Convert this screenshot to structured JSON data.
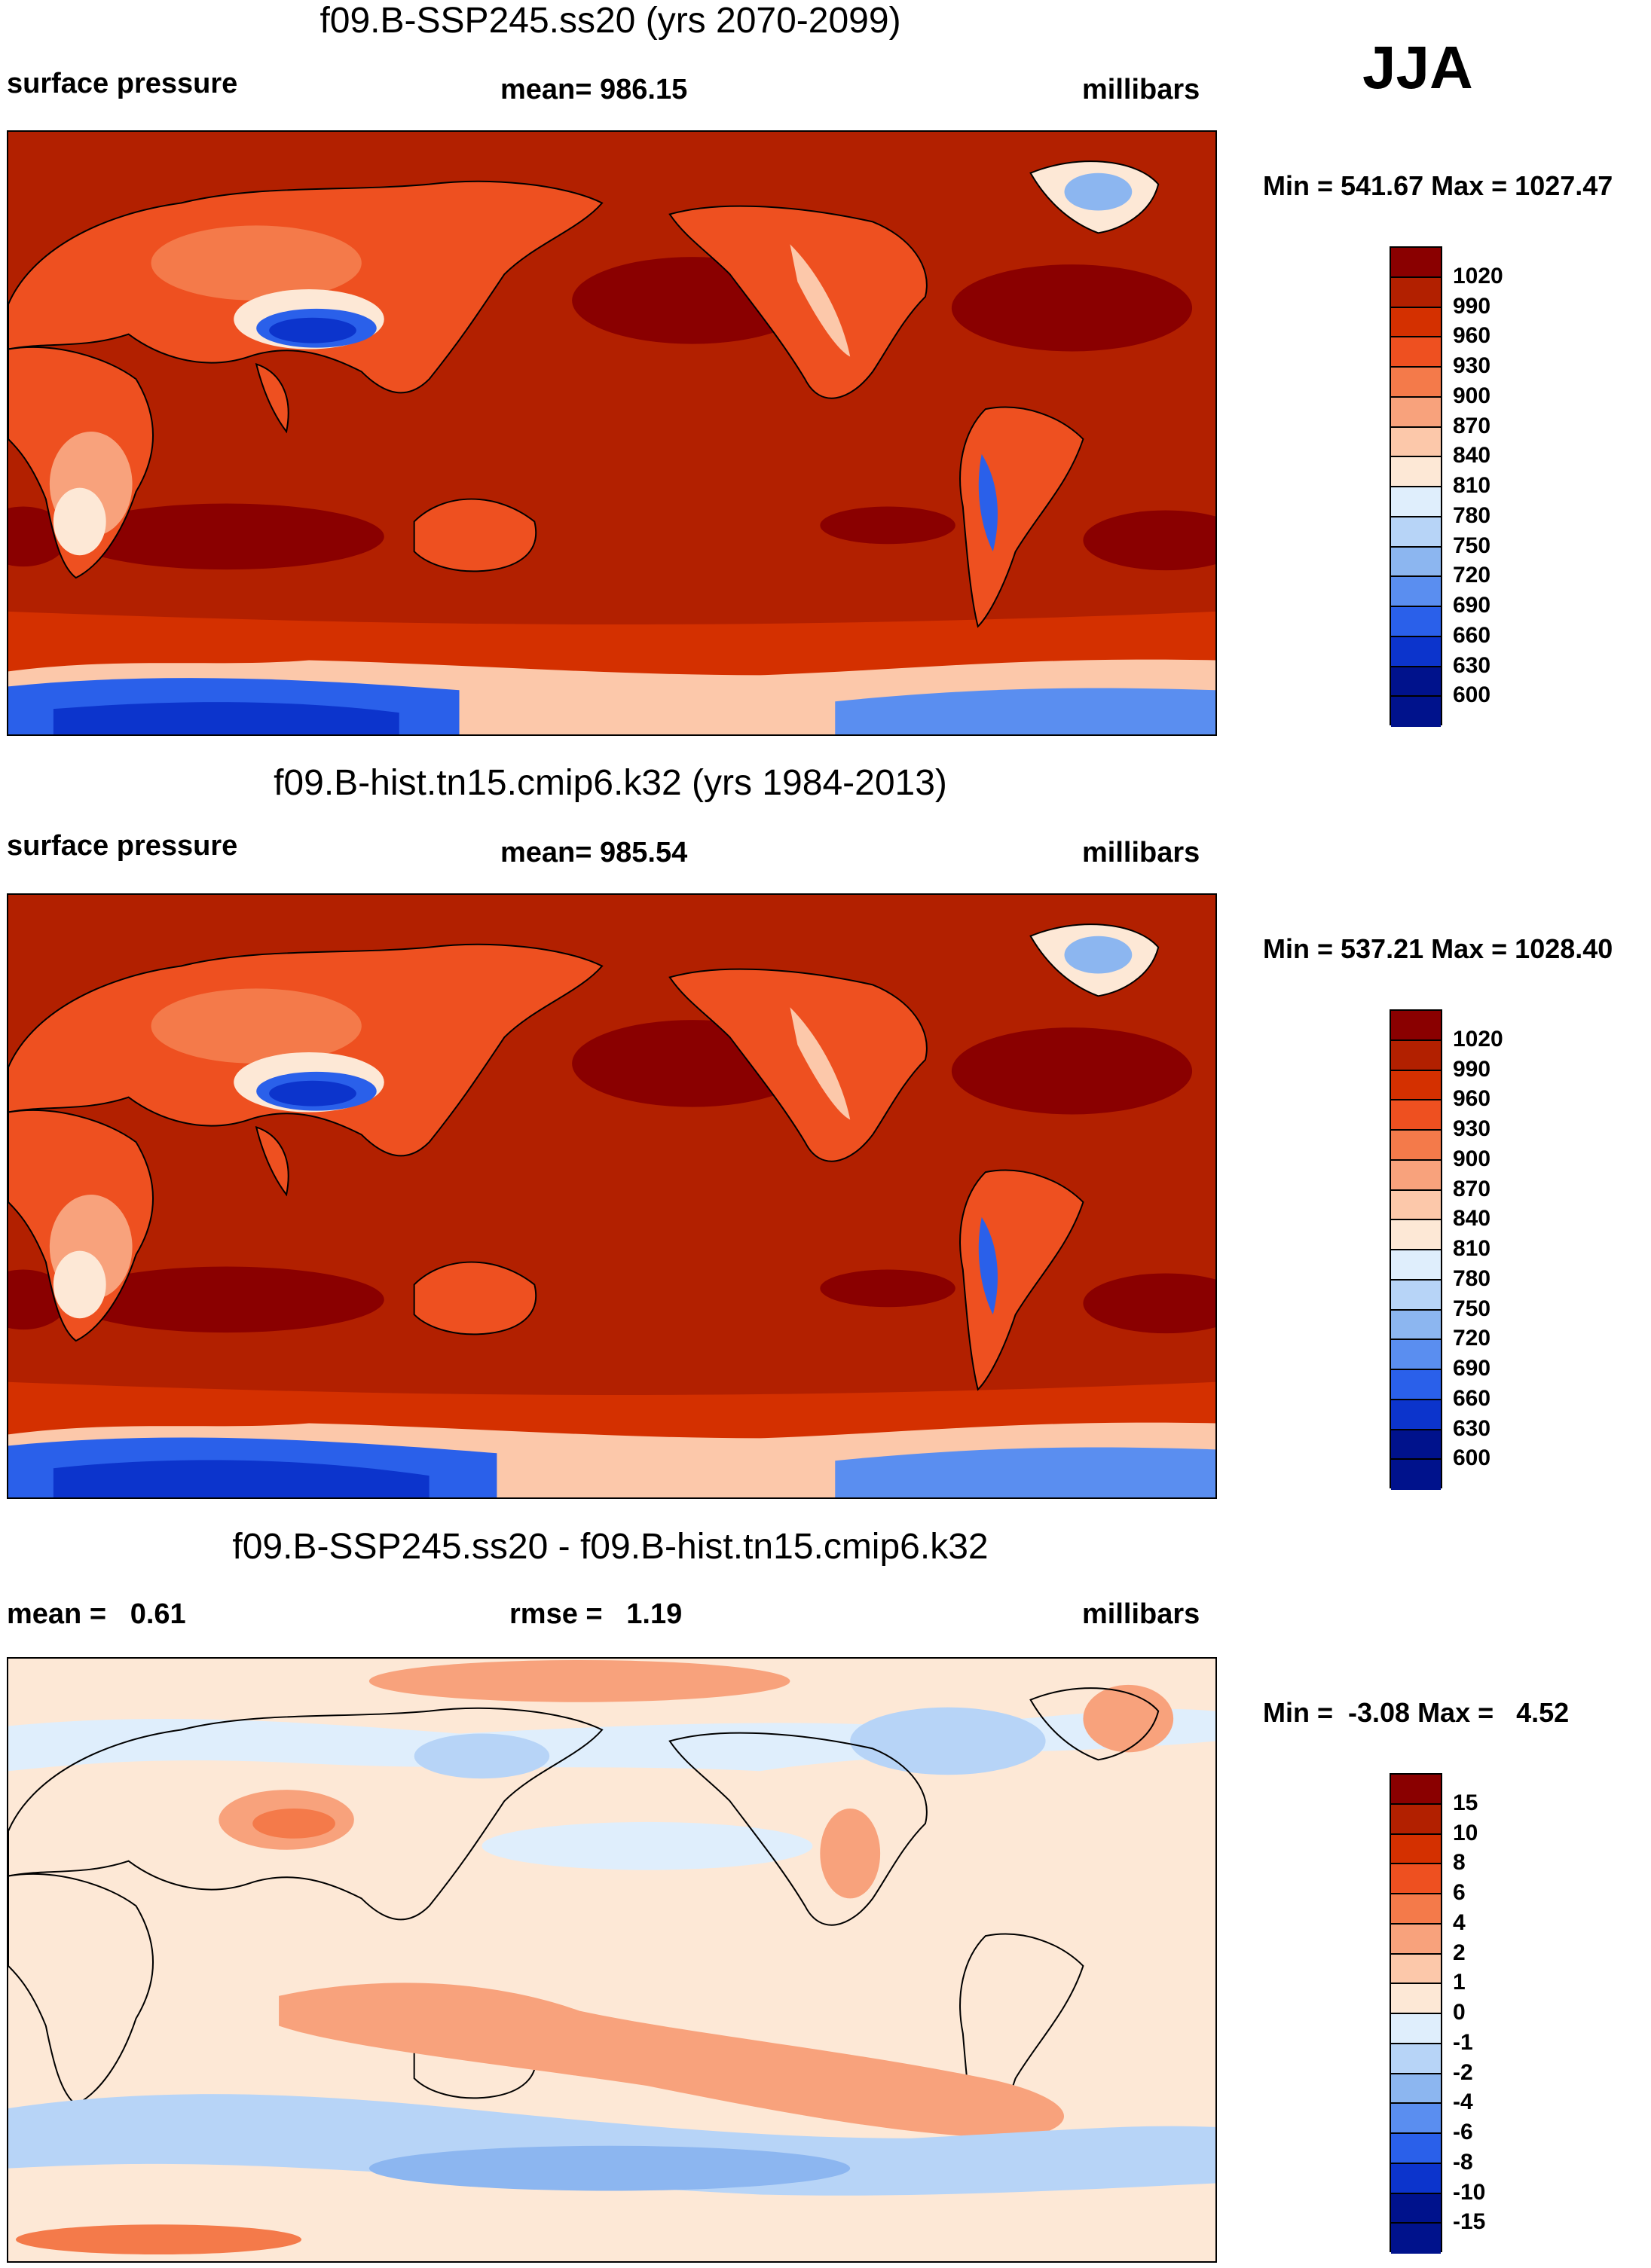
{
  "season": "JJA",
  "panels": [
    {
      "id": "future",
      "title": "f09.B-SSP245.ss20 (yrs 2070-2099)",
      "left_label": "surface pressure",
      "center_label": "mean= 986.15",
      "right_label": "millibars",
      "minmax": "Min = 541.67 Max = 1027.47",
      "colorbar": {
        "ticks": [
          "1020",
          "990",
          "960",
          "930",
          "900",
          "870",
          "840",
          "810",
          "780",
          "750",
          "720",
          "690",
          "660",
          "630",
          "600"
        ],
        "colors": [
          "#8a0000",
          "#b22000",
          "#d43000",
          "#ee5020",
          "#f47a4a",
          "#f8a27c",
          "#fcc8aa",
          "#fde8d6",
          "#dfeefc",
          "#b7d4f7",
          "#8cb6f0",
          "#5a8ef0",
          "#2a60ea",
          "#0c34cc",
          "#00128c"
        ]
      }
    },
    {
      "id": "historical",
      "title": "f09.B-hist.tn15.cmip6.k32 (yrs 1984-2013)",
      "left_label": "surface pressure",
      "center_label": "mean= 985.54",
      "right_label": "millibars",
      "minmax": "Min = 537.21 Max = 1028.40",
      "colorbar": {
        "ticks": [
          "1020",
          "990",
          "960",
          "930",
          "900",
          "870",
          "840",
          "810",
          "780",
          "750",
          "720",
          "690",
          "660",
          "630",
          "600"
        ],
        "colors": [
          "#8a0000",
          "#b22000",
          "#d43000",
          "#ee5020",
          "#f47a4a",
          "#f8a27c",
          "#fcc8aa",
          "#fde8d6",
          "#dfeefc",
          "#b7d4f7",
          "#8cb6f0",
          "#5a8ef0",
          "#2a60ea",
          "#0c34cc",
          "#00128c"
        ]
      }
    },
    {
      "id": "difference",
      "title": "f09.B-SSP245.ss20 - f09.B-hist.tn15.cmip6.k32",
      "left_label": "mean =   0.61",
      "center_label": "rmse =   1.19",
      "right_label": "millibars",
      "minmax": "Min =  -3.08 Max =   4.52",
      "colorbar": {
        "ticks": [
          "15",
          "10",
          "8",
          "6",
          "4",
          "2",
          "1",
          "0",
          "-1",
          "-2",
          "-4",
          "-6",
          "-8",
          "-10",
          "-15"
        ],
        "colors": [
          "#8a0000",
          "#b22000",
          "#d43000",
          "#ee5020",
          "#f47a4a",
          "#f8a27c",
          "#fcc8aa",
          "#fde8d6",
          "#dfeefc",
          "#b7d4f7",
          "#8cb6f0",
          "#5a8ef0",
          "#2a60ea",
          "#0c34cc",
          "#00128c"
        ]
      }
    }
  ]
}
